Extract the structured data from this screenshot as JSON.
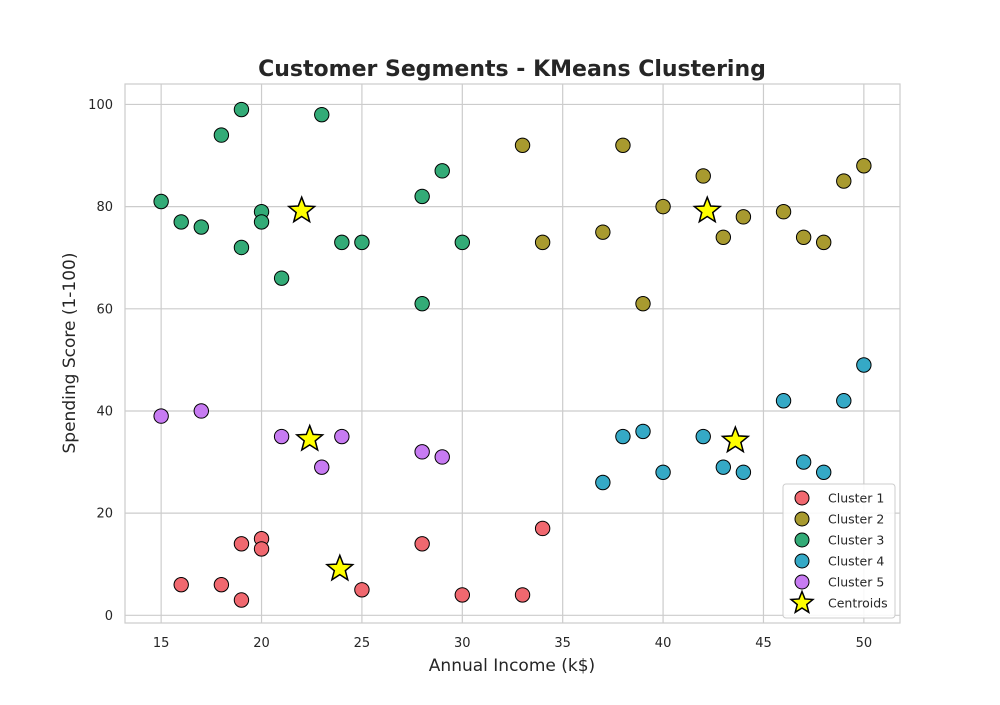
{
  "chart_data": {
    "type": "scatter",
    "title": "Customer Segments - KMeans Clustering",
    "xlabel": "Annual Income (k$)",
    "ylabel": "Spending Score (1-100)",
    "xlim": [
      13.2,
      51.8
    ],
    "ylim": [
      -1.5,
      104
    ],
    "xticks": [
      15,
      20,
      25,
      30,
      35,
      40,
      45,
      50
    ],
    "yticks": [
      0,
      20,
      40,
      60,
      80,
      100
    ],
    "grid": true,
    "legend_position": "lower-right",
    "series": [
      {
        "name": "Cluster 1",
        "color": "#f0686f",
        "points": [
          [
            16,
            6
          ],
          [
            18,
            6
          ],
          [
            19,
            3
          ],
          [
            19,
            14
          ],
          [
            20,
            15
          ],
          [
            20,
            13
          ],
          [
            25,
            5
          ],
          [
            28,
            14
          ],
          [
            30,
            4
          ],
          [
            33,
            4
          ],
          [
            34,
            17
          ]
        ]
      },
      {
        "name": "Cluster 2",
        "color": "#a89a2f",
        "points": [
          [
            33,
            92
          ],
          [
            34,
            73
          ],
          [
            37,
            75
          ],
          [
            38,
            92
          ],
          [
            39,
            61
          ],
          [
            40,
            80
          ],
          [
            42,
            86
          ],
          [
            43,
            74
          ],
          [
            44,
            78
          ],
          [
            46,
            79
          ],
          [
            47,
            74
          ],
          [
            48,
            73
          ],
          [
            49,
            85
          ],
          [
            50,
            88
          ]
        ]
      },
      {
        "name": "Cluster 3",
        "color": "#33ab77",
        "points": [
          [
            15,
            81
          ],
          [
            16,
            77
          ],
          [
            17,
            76
          ],
          [
            18,
            94
          ],
          [
            19,
            99
          ],
          [
            19,
            72
          ],
          [
            20,
            79
          ],
          [
            20,
            77
          ],
          [
            21,
            66
          ],
          [
            23,
            98
          ],
          [
            24,
            73
          ],
          [
            25,
            73
          ],
          [
            28,
            82
          ],
          [
            28,
            61
          ],
          [
            29,
            87
          ],
          [
            30,
            73
          ]
        ]
      },
      {
        "name": "Cluster 4",
        "color": "#35a9c6",
        "points": [
          [
            37,
            26
          ],
          [
            38,
            35
          ],
          [
            39,
            36
          ],
          [
            40,
            28
          ],
          [
            42,
            35
          ],
          [
            43,
            29
          ],
          [
            44,
            28
          ],
          [
            46,
            42
          ],
          [
            47,
            30
          ],
          [
            48,
            28
          ],
          [
            49,
            42
          ],
          [
            50,
            49
          ]
        ]
      },
      {
        "name": "Cluster 5",
        "color": "#c77bf2",
        "points": [
          [
            15,
            39
          ],
          [
            17,
            40
          ],
          [
            21,
            35
          ],
          [
            23,
            29
          ],
          [
            24,
            35
          ],
          [
            28,
            32
          ],
          [
            29,
            31
          ]
        ]
      }
    ],
    "centroids": {
      "name": "Centroids",
      "color": "#ffff00",
      "points": [
        [
          22,
          79.2
        ],
        [
          42.2,
          79.2
        ],
        [
          22.4,
          34.5
        ],
        [
          43.6,
          34.2
        ],
        [
          23.9,
          9.1
        ]
      ]
    }
  }
}
